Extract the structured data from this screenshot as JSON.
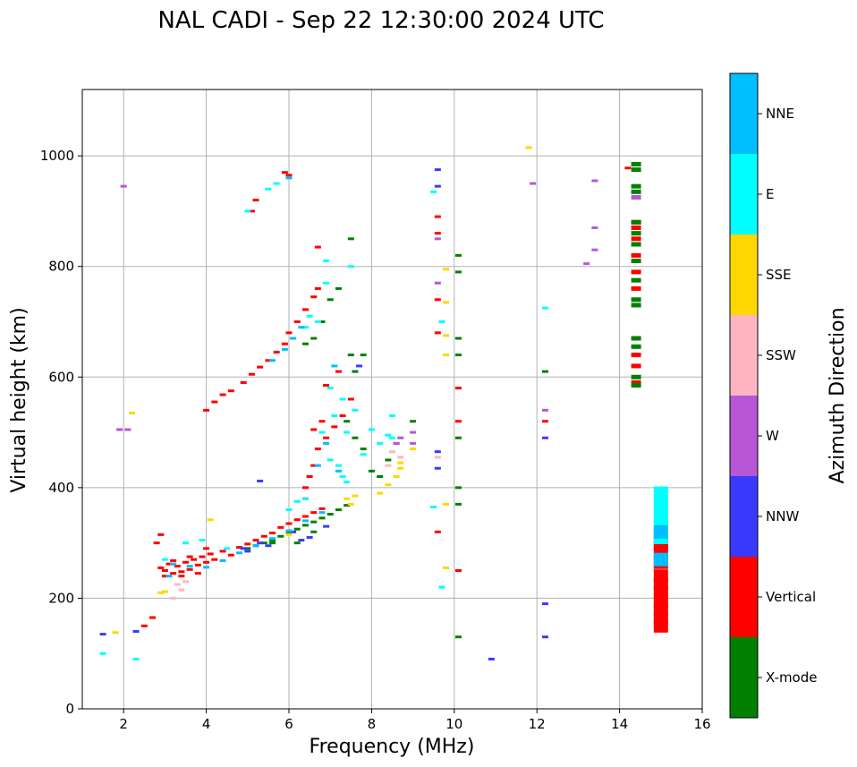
{
  "chart_data": {
    "type": "scatter",
    "title": "NAL CADI - Sep 22 12:30:00 2024 UTC",
    "xlabel": "Frequency (MHz)",
    "ylabel": "Virtual height (km)",
    "xlim": [
      1,
      16
    ],
    "ylim": [
      0,
      1120
    ],
    "xticks": [
      2,
      4,
      6,
      8,
      10,
      12,
      14,
      16
    ],
    "yticks": [
      0,
      200,
      400,
      600,
      800,
      1000
    ],
    "grid": true,
    "colorbar": {
      "label": "Azimuth Direction",
      "categories": [
        {
          "name": "X-mode",
          "color": "#008000"
        },
        {
          "name": "Vertical",
          "color": "#ff0000"
        },
        {
          "name": "NNW",
          "color": "#3a3aff"
        },
        {
          "name": "W",
          "color": "#b856d8"
        },
        {
          "name": "SSW",
          "color": "#ffb6c1"
        },
        {
          "name": "SSE",
          "color": "#ffd700"
        },
        {
          "name": "E",
          "color": "#00ffff"
        },
        {
          "name": "NNE",
          "color": "#00bfff"
        }
      ]
    },
    "series": [
      {
        "name": "Vertical",
        "points": [
          [
            2.9,
            255
          ],
          [
            3.0,
            250
          ],
          [
            3.1,
            262
          ],
          [
            3.2,
            245
          ],
          [
            3.3,
            258
          ],
          [
            3.4,
            248
          ],
          [
            3.5,
            265
          ],
          [
            3.6,
            252
          ],
          [
            3.7,
            270
          ],
          [
            3.8,
            260
          ],
          [
            3.9,
            275
          ],
          [
            4.0,
            265
          ],
          [
            4.1,
            280
          ],
          [
            4.2,
            270
          ],
          [
            4.4,
            285
          ],
          [
            4.6,
            278
          ],
          [
            4.8,
            292
          ],
          [
            5.0,
            298
          ],
          [
            5.2,
            305
          ],
          [
            5.4,
            312
          ],
          [
            5.6,
            318
          ],
          [
            5.8,
            328
          ],
          [
            6.0,
            335
          ],
          [
            6.2,
            342
          ],
          [
            6.4,
            348
          ],
          [
            6.6,
            355
          ],
          [
            6.8,
            362
          ],
          [
            3.0,
            240
          ],
          [
            3.2,
            268
          ],
          [
            3.4,
            240
          ],
          [
            3.6,
            275
          ],
          [
            3.8,
            245
          ],
          [
            4.0,
            290
          ],
          [
            2.7,
            165
          ],
          [
            2.5,
            150
          ],
          [
            2.8,
            300
          ],
          [
            2.9,
            315
          ],
          [
            4.0,
            540
          ],
          [
            4.2,
            555
          ],
          [
            4.4,
            568
          ],
          [
            4.6,
            575
          ],
          [
            4.9,
            590
          ],
          [
            5.1,
            605
          ],
          [
            5.3,
            618
          ],
          [
            5.5,
            630
          ],
          [
            5.7,
            645
          ],
          [
            5.9,
            660
          ],
          [
            6.0,
            680
          ],
          [
            6.2,
            700
          ],
          [
            6.4,
            722
          ],
          [
            6.6,
            745
          ],
          [
            6.7,
            760
          ],
          [
            5.2,
            920
          ],
          [
            5.1,
            900
          ],
          [
            5.9,
            970
          ],
          [
            6.0,
            965
          ],
          [
            6.4,
            380
          ],
          [
            6.4,
            400
          ],
          [
            6.5,
            420
          ],
          [
            6.6,
            440
          ],
          [
            6.7,
            470
          ],
          [
            6.9,
            490
          ],
          [
            7.1,
            510
          ],
          [
            7.3,
            530
          ],
          [
            7.5,
            560
          ],
          [
            6.8,
            520
          ],
          [
            6.6,
            505
          ],
          [
            6.9,
            585
          ],
          [
            7.2,
            610
          ],
          [
            6.7,
            835
          ],
          [
            9.6,
            890
          ],
          [
            9.6,
            860
          ],
          [
            9.6,
            740
          ],
          [
            9.6,
            680
          ],
          [
            9.6,
            320
          ],
          [
            10.1,
            580
          ],
          [
            10.1,
            520
          ],
          [
            10.1,
            250
          ],
          [
            12.2,
            520
          ],
          [
            14.2,
            978
          ],
          [
            14.4,
            850
          ],
          [
            14.4,
            820
          ],
          [
            14.4,
            790
          ],
          [
            14.4,
            760
          ],
          [
            14.4,
            640
          ],
          [
            14.4,
            620
          ],
          [
            14.4,
            590
          ],
          [
            14.4,
            870
          ],
          [
            14.4,
            880
          ],
          [
            15.0,
            150
          ],
          [
            15.0,
            165
          ],
          [
            15.0,
            180
          ],
          [
            15.0,
            195
          ],
          [
            15.0,
            210
          ],
          [
            15.0,
            225
          ],
          [
            15.0,
            240
          ],
          [
            15.0,
            265
          ],
          [
            15.0,
            285
          ],
          [
            15.0,
            300
          ]
        ]
      },
      {
        "name": "X-mode",
        "points": [
          [
            5.0,
            290
          ],
          [
            5.2,
            295
          ],
          [
            5.4,
            300
          ],
          [
            5.6,
            305
          ],
          [
            5.8,
            312
          ],
          [
            6.0,
            318
          ],
          [
            6.2,
            325
          ],
          [
            6.4,
            332
          ],
          [
            6.6,
            338
          ],
          [
            6.8,
            345
          ],
          [
            7.0,
            352
          ],
          [
            7.2,
            360
          ],
          [
            7.4,
            368
          ],
          [
            6.4,
            660
          ],
          [
            6.6,
            670
          ],
          [
            6.8,
            700
          ],
          [
            7.0,
            740
          ],
          [
            7.2,
            760
          ],
          [
            7.5,
            850
          ],
          [
            7.5,
            640
          ],
          [
            7.6,
            610
          ],
          [
            7.8,
            640
          ],
          [
            7.4,
            520
          ],
          [
            7.6,
            490
          ],
          [
            7.8,
            470
          ],
          [
            8.0,
            430
          ],
          [
            8.2,
            420
          ],
          [
            8.4,
            450
          ],
          [
            8.6,
            480
          ],
          [
            9.0,
            520
          ],
          [
            10.1,
            820
          ],
          [
            10.1,
            790
          ],
          [
            10.1,
            670
          ],
          [
            10.1,
            640
          ],
          [
            10.1,
            490
          ],
          [
            10.1,
            400
          ],
          [
            10.1,
            370
          ],
          [
            10.1,
            130
          ],
          [
            12.2,
            610
          ],
          [
            6.2,
            300
          ],
          [
            5.6,
            300
          ],
          [
            6.6,
            320
          ],
          [
            14.4,
            985
          ],
          [
            14.4,
            975
          ],
          [
            14.4,
            945
          ],
          [
            14.4,
            935
          ],
          [
            14.4,
            880
          ],
          [
            14.4,
            860
          ],
          [
            14.4,
            840
          ],
          [
            14.4,
            810
          ],
          [
            14.4,
            775
          ],
          [
            14.4,
            740
          ],
          [
            14.4,
            730
          ],
          [
            14.4,
            670
          ],
          [
            14.4,
            655
          ],
          [
            14.4,
            600
          ],
          [
            14.4,
            585
          ]
        ]
      },
      {
        "name": "NNW",
        "points": [
          [
            1.5,
            135
          ],
          [
            2.3,
            140
          ],
          [
            4.9,
            290
          ],
          [
            5.3,
            300
          ],
          [
            5.5,
            295
          ],
          [
            6.1,
            320
          ],
          [
            6.3,
            305
          ],
          [
            7.7,
            620
          ],
          [
            9.6,
            975
          ],
          [
            9.6,
            945
          ],
          [
            9.6,
            465
          ],
          [
            9.6,
            435
          ],
          [
            10.9,
            90
          ],
          [
            12.2,
            490
          ],
          [
            12.2,
            190
          ],
          [
            12.2,
            130
          ],
          [
            6.9,
            330
          ],
          [
            5.3,
            412
          ],
          [
            5.0,
            285
          ],
          [
            6.5,
            310
          ]
        ]
      },
      {
        "name": "W",
        "points": [
          [
            2.1,
            505
          ],
          [
            9.0,
            500
          ],
          [
            9.0,
            480
          ],
          [
            8.7,
            490
          ],
          [
            8.6,
            480
          ],
          [
            9.6,
            770
          ],
          [
            9.6,
            850
          ],
          [
            11.9,
            950
          ],
          [
            12.2,
            540
          ],
          [
            13.2,
            805
          ],
          [
            13.4,
            955
          ],
          [
            13.4,
            870
          ],
          [
            13.4,
            830
          ],
          [
            2.0,
            945
          ],
          [
            1.9,
            505
          ],
          [
            14.4,
            925
          ]
        ]
      },
      {
        "name": "SSW",
        "points": [
          [
            3.3,
            225
          ],
          [
            3.4,
            215
          ],
          [
            3.5,
            230
          ],
          [
            3.2,
            200
          ],
          [
            8.4,
            440
          ],
          [
            8.5,
            465
          ],
          [
            8.7,
            455
          ],
          [
            9.6,
            455
          ]
        ]
      },
      {
        "name": "SSE",
        "points": [
          [
            1.8,
            138
          ],
          [
            2.9,
            210
          ],
          [
            3.0,
            212
          ],
          [
            4.1,
            342
          ],
          [
            7.5,
            370
          ],
          [
            7.6,
            385
          ],
          [
            8.2,
            390
          ],
          [
            8.4,
            405
          ],
          [
            8.6,
            420
          ],
          [
            8.7,
            435
          ],
          [
            8.7,
            445
          ],
          [
            9.8,
            795
          ],
          [
            9.8,
            735
          ],
          [
            9.8,
            675
          ],
          [
            9.8,
            640
          ],
          [
            9.8,
            370
          ],
          [
            9.8,
            255
          ],
          [
            11.8,
            1015
          ],
          [
            2.2,
            535
          ],
          [
            6.0,
            315
          ],
          [
            7.4,
            380
          ],
          [
            9.0,
            470
          ]
        ]
      },
      {
        "name": "E",
        "points": [
          [
            1.5,
            100
          ],
          [
            2.3,
            90
          ],
          [
            3.0,
            270
          ],
          [
            3.5,
            300
          ],
          [
            3.9,
            305
          ],
          [
            4.5,
            290
          ],
          [
            5.0,
            900
          ],
          [
            5.5,
            940
          ],
          [
            5.7,
            950
          ],
          [
            6.0,
            360
          ],
          [
            6.2,
            375
          ],
          [
            6.4,
            380
          ],
          [
            6.5,
            710
          ],
          [
            6.7,
            700
          ],
          [
            6.9,
            770
          ],
          [
            7.0,
            580
          ],
          [
            7.1,
            530
          ],
          [
            7.3,
            420
          ],
          [
            7.4,
            500
          ],
          [
            7.6,
            540
          ],
          [
            7.8,
            460
          ],
          [
            8.0,
            505
          ],
          [
            8.2,
            480
          ],
          [
            8.4,
            495
          ],
          [
            8.5,
            490
          ],
          [
            8.5,
            530
          ],
          [
            9.5,
            365
          ],
          [
            9.5,
            935
          ],
          [
            9.7,
            700
          ],
          [
            9.7,
            220
          ],
          [
            12.2,
            725
          ],
          [
            6.8,
            500
          ],
          [
            7.0,
            450
          ],
          [
            7.2,
            440
          ],
          [
            7.4,
            410
          ],
          [
            6.4,
            690
          ],
          [
            6.9,
            810
          ],
          [
            7.5,
            800
          ],
          [
            7.3,
            560
          ],
          [
            15.0,
            310
          ],
          [
            15.0,
            330
          ],
          [
            15.0,
            345
          ],
          [
            15.0,
            360
          ],
          [
            15.0,
            375
          ],
          [
            15.0,
            390
          ]
        ]
      },
      {
        "name": "NNE",
        "points": [
          [
            3.2,
            262
          ],
          [
            3.6,
            258
          ],
          [
            4.0,
            256
          ],
          [
            4.4,
            268
          ],
          [
            4.8,
            282
          ],
          [
            5.2,
            295
          ],
          [
            5.6,
            308
          ],
          [
            6.0,
            322
          ],
          [
            6.4,
            340
          ],
          [
            6.8,
            355
          ],
          [
            6.9,
            480
          ],
          [
            5.9,
            650
          ],
          [
            6.1,
            670
          ],
          [
            6.3,
            690
          ],
          [
            6.0,
            960
          ],
          [
            6.7,
            440
          ],
          [
            7.2,
            430
          ],
          [
            15.0,
            270
          ],
          [
            15.0,
            320
          ],
          [
            5.6,
            630
          ],
          [
            3.1,
            240
          ],
          [
            7.1,
            620
          ]
        ]
      }
    ]
  }
}
